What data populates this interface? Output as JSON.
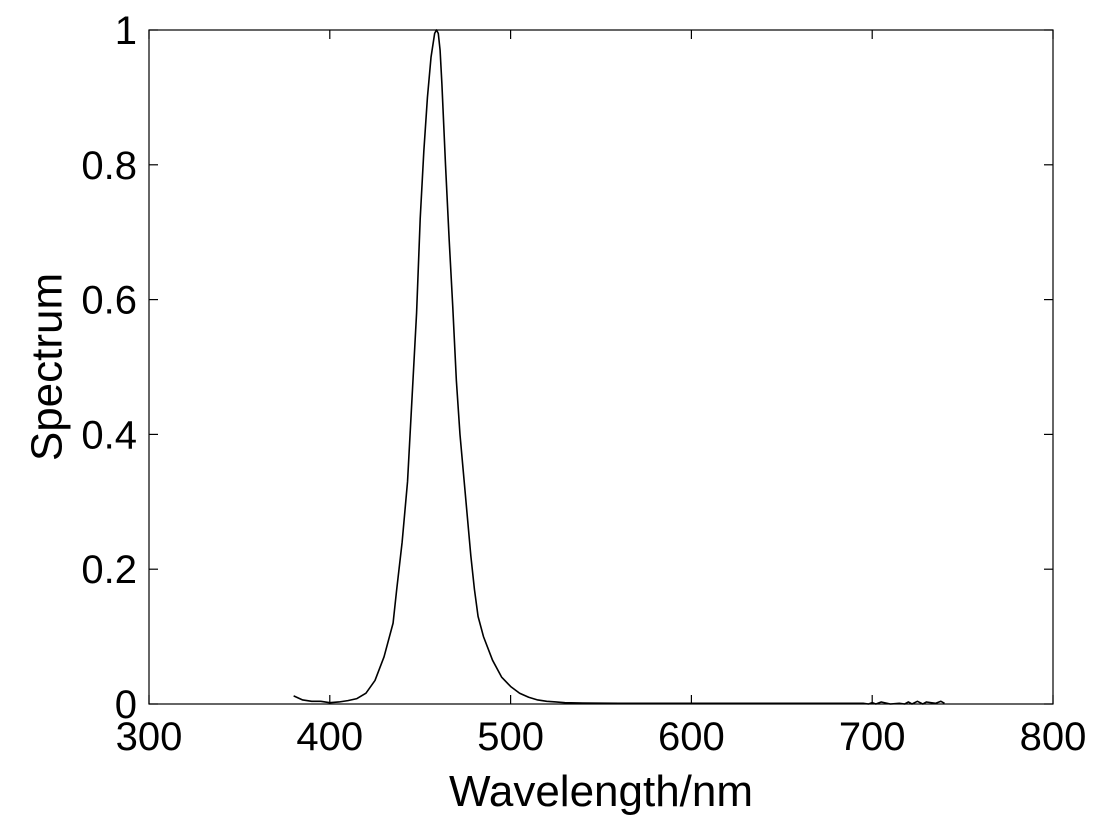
{
  "chart_data": {
    "type": "line",
    "xlabel": "Wavelength/nm",
    "ylabel": "Spectrum",
    "xlim": [
      300,
      800
    ],
    "ylim": [
      0,
      1
    ],
    "xticks": [
      300,
      400,
      500,
      600,
      700,
      800
    ],
    "yticks": [
      0,
      0.2,
      0.4,
      0.6,
      0.8,
      1
    ],
    "xtick_labels": [
      "300",
      "400",
      "500",
      "600",
      "700",
      "800"
    ],
    "ytick_labels": [
      "0",
      "0.2",
      "0.4",
      "0.6",
      "0.8",
      "1"
    ],
    "grid": false,
    "colors": {
      "line": "#000000",
      "axes": "#000000",
      "background": "#ffffff"
    },
    "series": [
      {
        "x": [
          380,
          385,
          390,
          395,
          400,
          405,
          410,
          415,
          420,
          425,
          430,
          435,
          437,
          440,
          443,
          445,
          448,
          450,
          452,
          454,
          456,
          458,
          459,
          460,
          461,
          462,
          464,
          466,
          468,
          470,
          472,
          474,
          476,
          478,
          480,
          482,
          485,
          490,
          495,
          500,
          505,
          510,
          515,
          520,
          525,
          530,
          540,
          560,
          600,
          650,
          690,
          695,
          698,
          700,
          702,
          705,
          710,
          715,
          718,
          720,
          722,
          725,
          728,
          730,
          735,
          738,
          740
        ],
        "y": [
          0.012,
          0.006,
          0.004,
          0.004,
          0.002,
          0.003,
          0.005,
          0.008,
          0.016,
          0.035,
          0.07,
          0.12,
          0.17,
          0.24,
          0.33,
          0.43,
          0.58,
          0.72,
          0.82,
          0.9,
          0.96,
          0.995,
          1.0,
          0.995,
          0.97,
          0.92,
          0.8,
          0.69,
          0.59,
          0.48,
          0.4,
          0.34,
          0.28,
          0.22,
          0.17,
          0.13,
          0.1,
          0.065,
          0.04,
          0.026,
          0.016,
          0.01,
          0.006,
          0.004,
          0.003,
          0.002,
          0.0015,
          0.001,
          0.001,
          0.001,
          0.001,
          0.001,
          0.0,
          0.002,
          0.0,
          0.003,
          0.0,
          0.001,
          0.0,
          0.003,
          0.0,
          0.004,
          0.0,
          0.003,
          0.001,
          0.004,
          0.001
        ]
      }
    ]
  }
}
